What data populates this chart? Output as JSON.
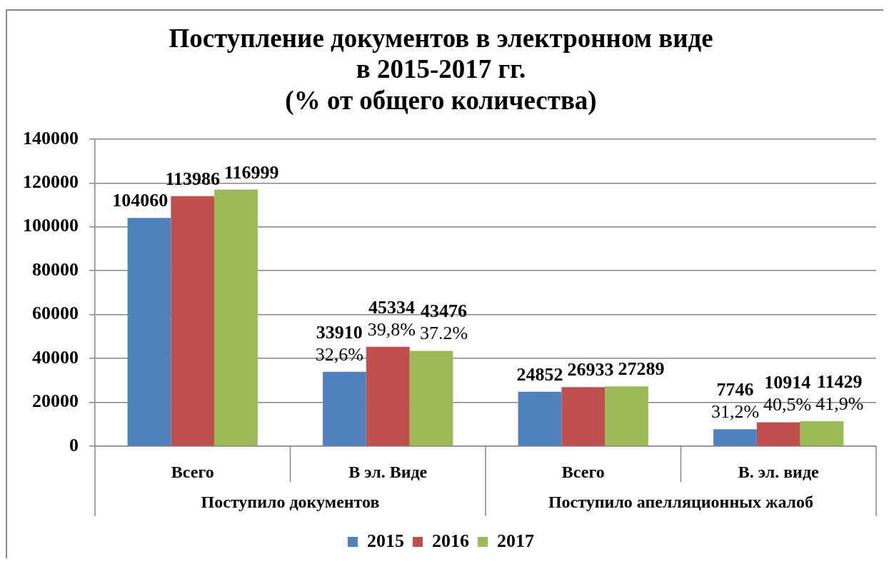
{
  "chart_data": {
    "type": "bar",
    "title": "Поступление документов в электронном виде\nв 2015-2017 гг.\n(% от общего количества)",
    "categories": [
      "Всего",
      "В эл. Виде",
      "Всего",
      "В. эл. виде"
    ],
    "annotations": [
      "Поступило документов",
      "Поступило апелляционных жалоб"
    ],
    "series": [
      {
        "name": "2015",
        "color": "#4f81bd",
        "values": [
          104060,
          33910,
          24852,
          7746
        ],
        "value_labels": [
          "104060",
          "33910\n32,6%",
          "24852",
          "7746\n31,2%"
        ]
      },
      {
        "name": "2016",
        "color": "#c0504d",
        "values": [
          113986,
          45334,
          26933,
          10914
        ],
        "value_labels": [
          "113986",
          "45334\n39,8%",
          "26933",
          "10914\n40,5%"
        ]
      },
      {
        "name": "2017",
        "color": "#9bbb59",
        "values": [
          116999,
          43476,
          27289,
          11429
        ],
        "value_labels": [
          "116999",
          "43476\n37.2%",
          "27289",
          "11429\n41,9%"
        ]
      }
    ],
    "ylim": [
      0,
      140000
    ],
    "yticks": [
      0,
      20000,
      40000,
      60000,
      80000,
      100000,
      120000,
      140000
    ],
    "grid": "y",
    "legend": "bottom"
  }
}
